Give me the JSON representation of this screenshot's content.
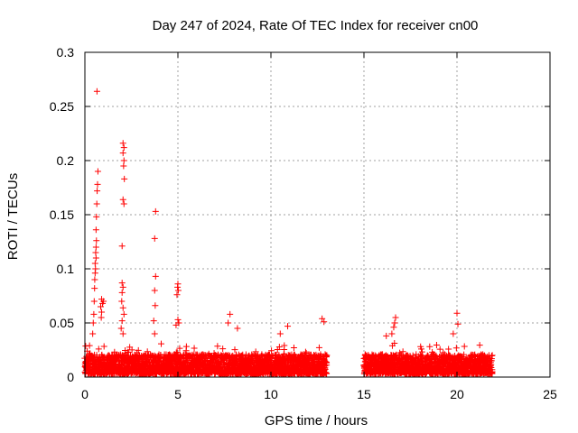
{
  "chart_data": {
    "type": "scatter",
    "title": "Day 247 of 2024, Rate Of TEC Index for receiver cn00",
    "xlabel": "GPS time / hours",
    "ylabel": "ROTI / TECUs",
    "xlim": [
      0,
      25
    ],
    "ylim": [
      0,
      0.3
    ],
    "xticks": [
      0,
      5,
      10,
      15,
      20,
      25
    ],
    "yticks": [
      0,
      0.05,
      0.1,
      0.15,
      0.2,
      0.25,
      0.3
    ],
    "grid": true,
    "marker": "+",
    "color": "#ff0000",
    "coverage_segments": [
      [
        0,
        13.0
      ],
      [
        15.0,
        21.9
      ]
    ],
    "series": [
      {
        "name": "ROTI",
        "points": [
          [
            0.65,
            0.264
          ],
          [
            0.7,
            0.19
          ],
          [
            0.68,
            0.178
          ],
          [
            0.66,
            0.172
          ],
          [
            0.64,
            0.16
          ],
          [
            0.62,
            0.148
          ],
          [
            0.6,
            0.136
          ],
          [
            0.62,
            0.126
          ],
          [
            0.6,
            0.12
          ],
          [
            0.58,
            0.115
          ],
          [
            0.6,
            0.11
          ],
          [
            0.55,
            0.105
          ],
          [
            0.57,
            0.1
          ],
          [
            0.55,
            0.096
          ],
          [
            0.53,
            0.09
          ],
          [
            0.52,
            0.082
          ],
          [
            0.5,
            0.07
          ],
          [
            0.48,
            0.058
          ],
          [
            0.45,
            0.05
          ],
          [
            0.42,
            0.04
          ],
          [
            0.9,
            0.072
          ],
          [
            0.95,
            0.068
          ],
          [
            0.85,
            0.065
          ],
          [
            0.9,
            0.06
          ],
          [
            0.88,
            0.055
          ],
          [
            1.0,
            0.07
          ],
          [
            2.05,
            0.216
          ],
          [
            2.1,
            0.212
          ],
          [
            2.05,
            0.207
          ],
          [
            2.1,
            0.2
          ],
          [
            2.08,
            0.195
          ],
          [
            2.12,
            0.183
          ],
          [
            2.05,
            0.164
          ],
          [
            2.1,
            0.16
          ],
          [
            2.0,
            0.121
          ],
          [
            2.0,
            0.087
          ],
          [
            2.05,
            0.083
          ],
          [
            2.0,
            0.078
          ],
          [
            1.98,
            0.07
          ],
          [
            2.05,
            0.064
          ],
          [
            2.1,
            0.058
          ],
          [
            2.0,
            0.052
          ],
          [
            1.95,
            0.045
          ],
          [
            2.05,
            0.04
          ],
          [
            3.8,
            0.153
          ],
          [
            3.75,
            0.128
          ],
          [
            3.8,
            0.093
          ],
          [
            3.75,
            0.08
          ],
          [
            3.78,
            0.066
          ],
          [
            3.7,
            0.052
          ],
          [
            3.75,
            0.04
          ],
          [
            5.0,
            0.086
          ],
          [
            4.98,
            0.083
          ],
          [
            5.02,
            0.08
          ],
          [
            4.95,
            0.076
          ],
          [
            5.0,
            0.053
          ],
          [
            5.05,
            0.05
          ],
          [
            4.9,
            0.048
          ],
          [
            7.8,
            0.058
          ],
          [
            7.7,
            0.05
          ],
          [
            8.2,
            0.045
          ],
          [
            10.9,
            0.047
          ],
          [
            10.5,
            0.04
          ],
          [
            12.75,
            0.054
          ],
          [
            12.85,
            0.051
          ],
          [
            16.7,
            0.055
          ],
          [
            16.65,
            0.05
          ],
          [
            16.6,
            0.046
          ],
          [
            16.5,
            0.04
          ],
          [
            16.2,
            0.038
          ],
          [
            20.0,
            0.059
          ],
          [
            20.05,
            0.049
          ],
          [
            19.8,
            0.04
          ]
        ]
      }
    ]
  }
}
